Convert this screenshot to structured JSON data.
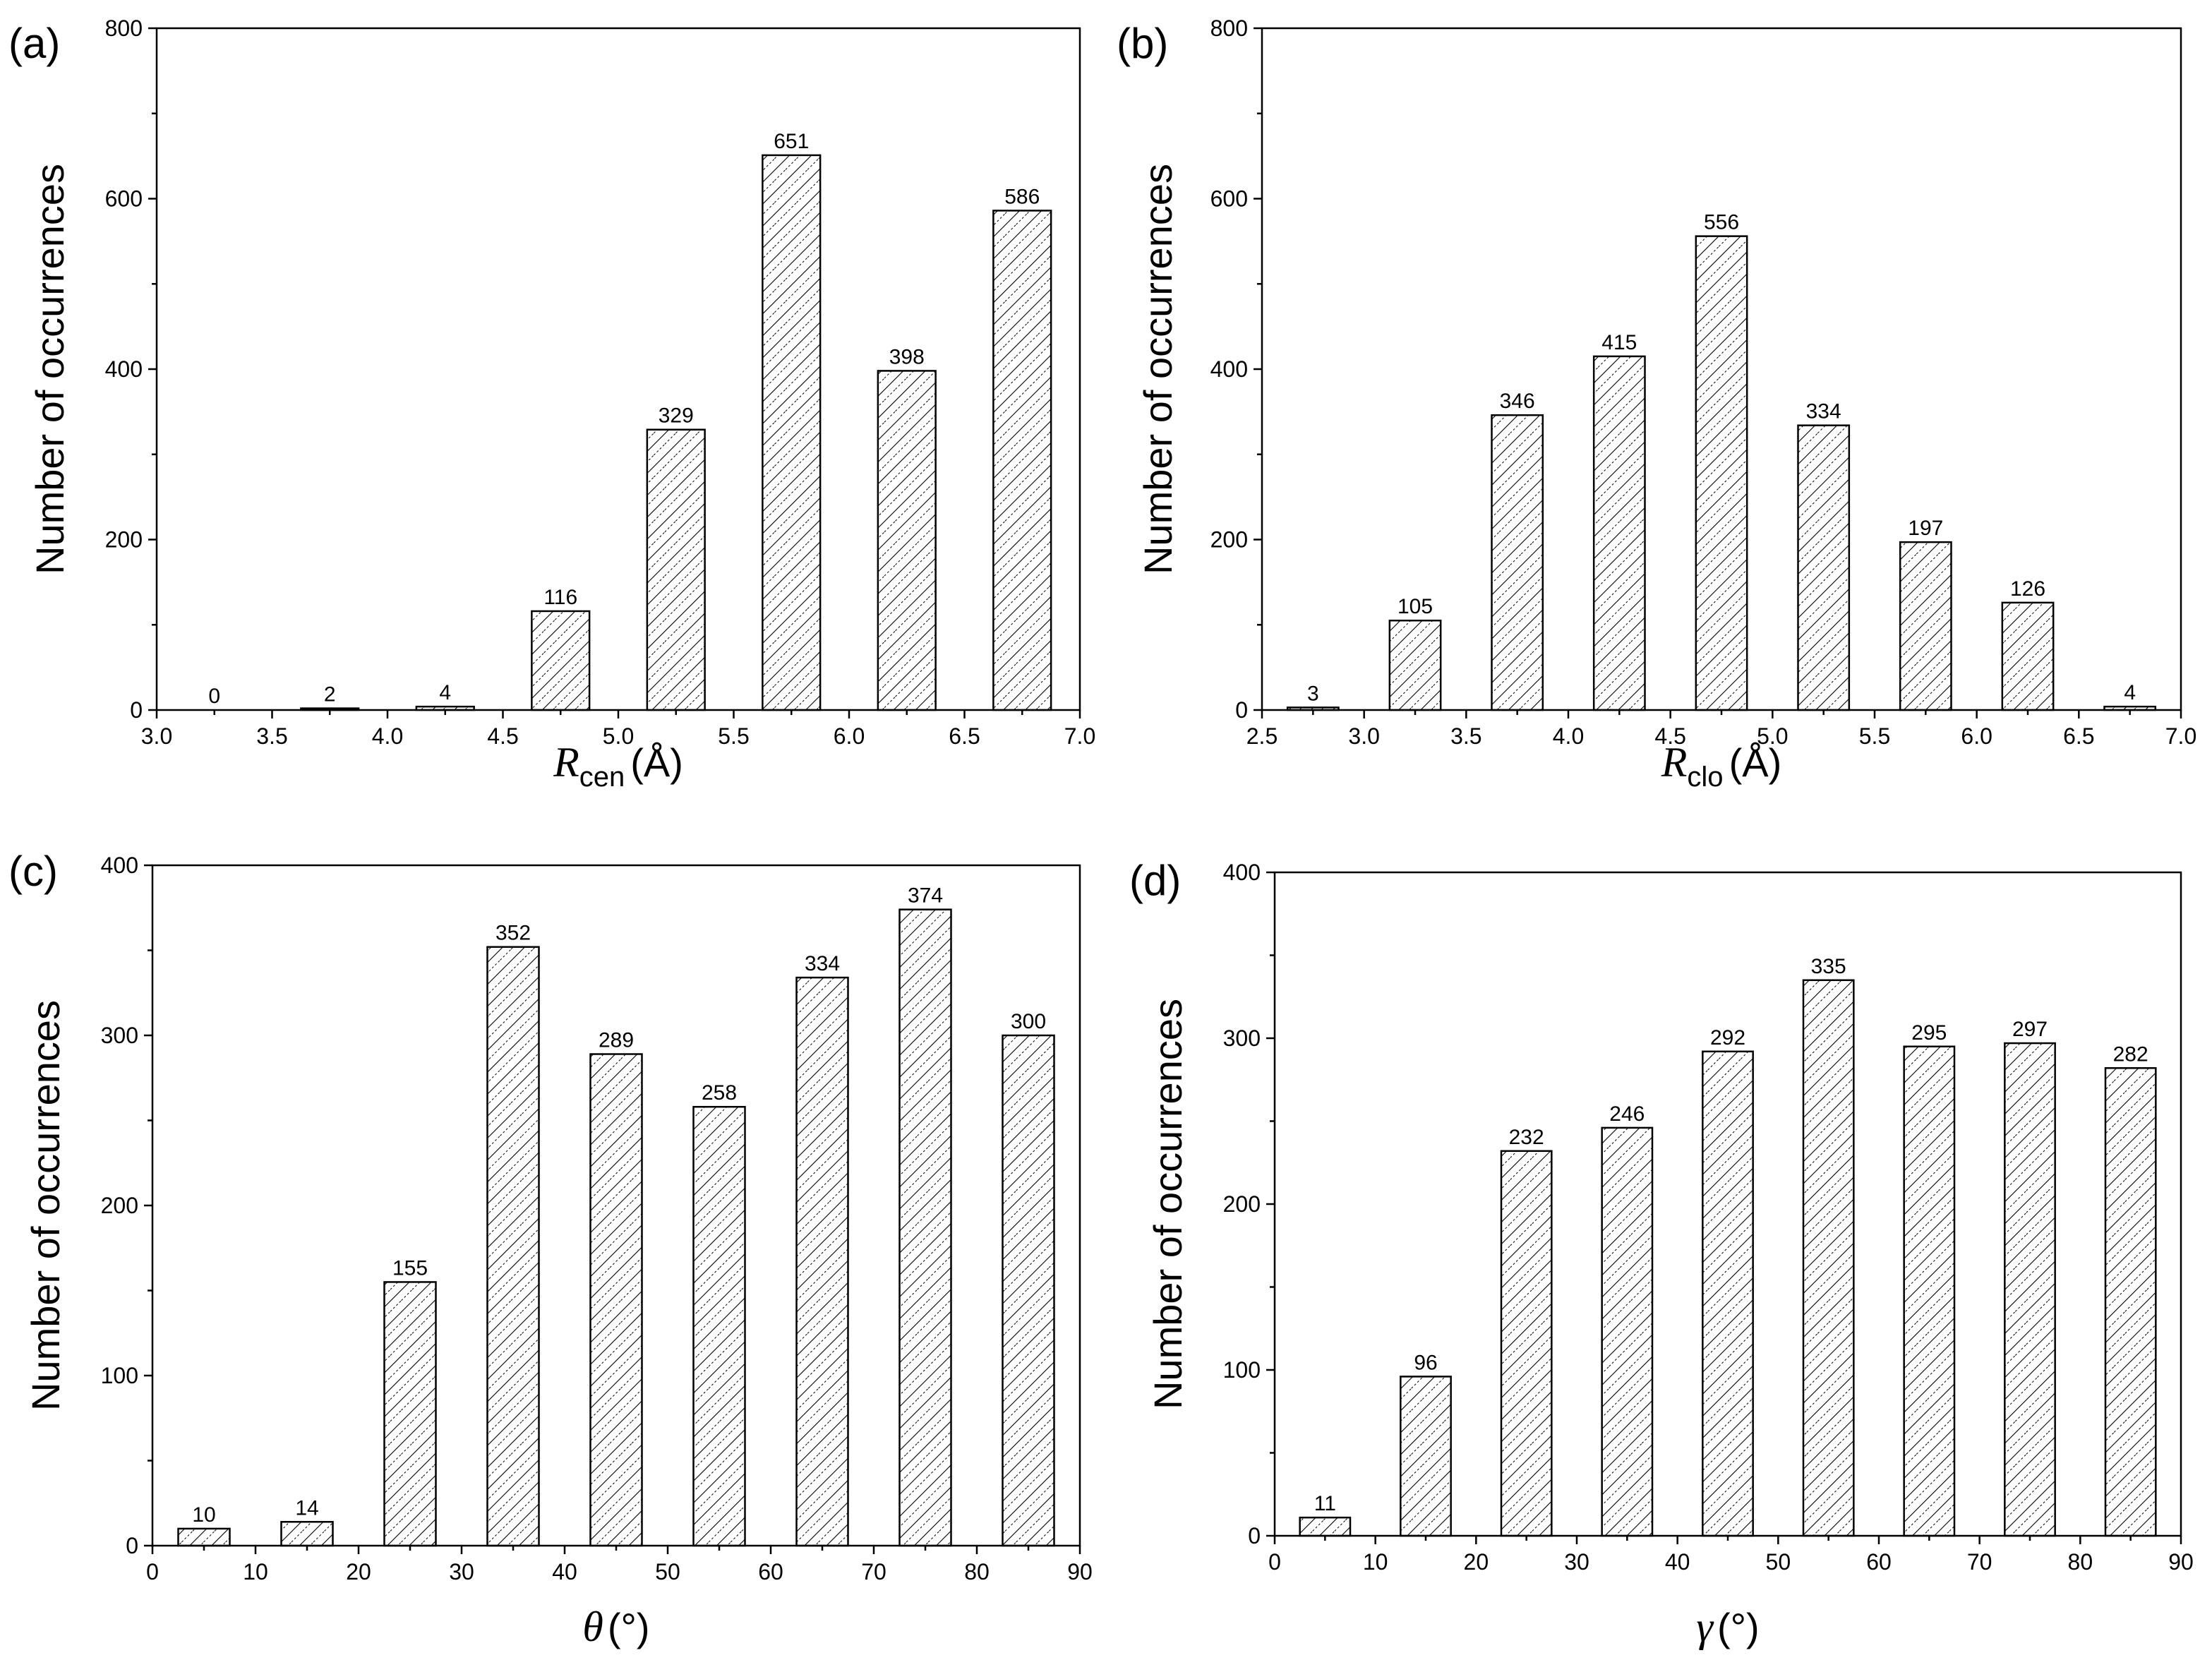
{
  "chart_data": [
    {
      "type": "bar",
      "panel": "(a)",
      "title": "",
      "xlabel": {
        "symbol": "R",
        "subscript": "cen",
        "unit": "(Å)"
      },
      "ylabel": "Number of occurrences",
      "xlim": [
        3.0,
        7.0
      ],
      "ylim": [
        0,
        800
      ],
      "xticks": [
        "3.0",
        "3.5",
        "4.0",
        "4.5",
        "5.0",
        "5.5",
        "6.0",
        "6.5",
        "7.0"
      ],
      "yticks": [
        "0",
        "200",
        "400",
        "600",
        "800"
      ],
      "bin_width": 0.25,
      "x": [
        3.25,
        3.75,
        4.25,
        4.75,
        5.25,
        5.75,
        6.25,
        6.75
      ],
      "values": [
        0,
        2,
        4,
        116,
        329,
        651,
        398,
        586
      ],
      "data_labels": [
        "0",
        "2",
        "4",
        "116",
        "329",
        "651",
        "398",
        "586"
      ]
    },
    {
      "type": "bar",
      "panel": "(b)",
      "title": "",
      "xlabel": {
        "symbol": "R",
        "subscript": "clo",
        "unit": "(Å)"
      },
      "ylabel": "Number of occurrences",
      "xlim": [
        2.5,
        7.0
      ],
      "ylim": [
        0,
        800
      ],
      "xticks": [
        "2.5",
        "3.0",
        "3.5",
        "4.0",
        "4.5",
        "5.0",
        "5.5",
        "6.0",
        "6.5",
        "7.0"
      ],
      "yticks": [
        "0",
        "200",
        "400",
        "600",
        "800"
      ],
      "bin_width": 0.25,
      "x": [
        2.75,
        3.25,
        3.75,
        4.25,
        4.75,
        5.25,
        5.75,
        6.25,
        6.75
      ],
      "values": [
        3,
        105,
        346,
        415,
        556,
        334,
        197,
        126,
        4
      ],
      "data_labels": [
        "3",
        "105",
        "346",
        "415",
        "556",
        "334",
        "197",
        "126",
        "4"
      ]
    },
    {
      "type": "bar",
      "panel": "(c)",
      "title": "",
      "xlabel": {
        "symbol": "θ",
        "subscript": "",
        "unit": "(°)"
      },
      "ylabel": "Number of occurrences",
      "xlim": [
        0,
        90
      ],
      "ylim": [
        0,
        400
      ],
      "xticks": [
        "0",
        "10",
        "20",
        "30",
        "40",
        "50",
        "60",
        "70",
        "80",
        "90"
      ],
      "yticks": [
        "0",
        "100",
        "200",
        "300",
        "400"
      ],
      "bin_width": 5,
      "x": [
        5,
        15,
        25,
        35,
        45,
        55,
        65,
        75,
        85
      ],
      "values": [
        10,
        14,
        155,
        352,
        289,
        258,
        334,
        374,
        300
      ],
      "data_labels": [
        "10",
        "14",
        "155",
        "352",
        "289",
        "258",
        "334",
        "374",
        "300"
      ]
    },
    {
      "type": "bar",
      "panel": "(d)",
      "title": "",
      "xlabel": {
        "symbol": "γ",
        "subscript": "",
        "unit": "(°)"
      },
      "ylabel": "Number of occurrences",
      "xlim": [
        0,
        90
      ],
      "ylim": [
        0,
        400
      ],
      "xticks": [
        "0",
        "10",
        "20",
        "30",
        "40",
        "50",
        "60",
        "70",
        "80",
        "90"
      ],
      "yticks": [
        "0",
        "100",
        "200",
        "300",
        "400"
      ],
      "bin_width": 5,
      "x": [
        5,
        15,
        25,
        35,
        45,
        55,
        65,
        75,
        85
      ],
      "values": [
        11,
        96,
        232,
        246,
        292,
        335,
        295,
        297,
        282
      ],
      "data_labels": [
        "11",
        "96",
        "232",
        "246",
        "292",
        "335",
        "295",
        "297",
        "282"
      ]
    }
  ],
  "colors": {
    "axis": "#000000",
    "bar_fill": "#ffffff",
    "hatch": "#000000"
  }
}
